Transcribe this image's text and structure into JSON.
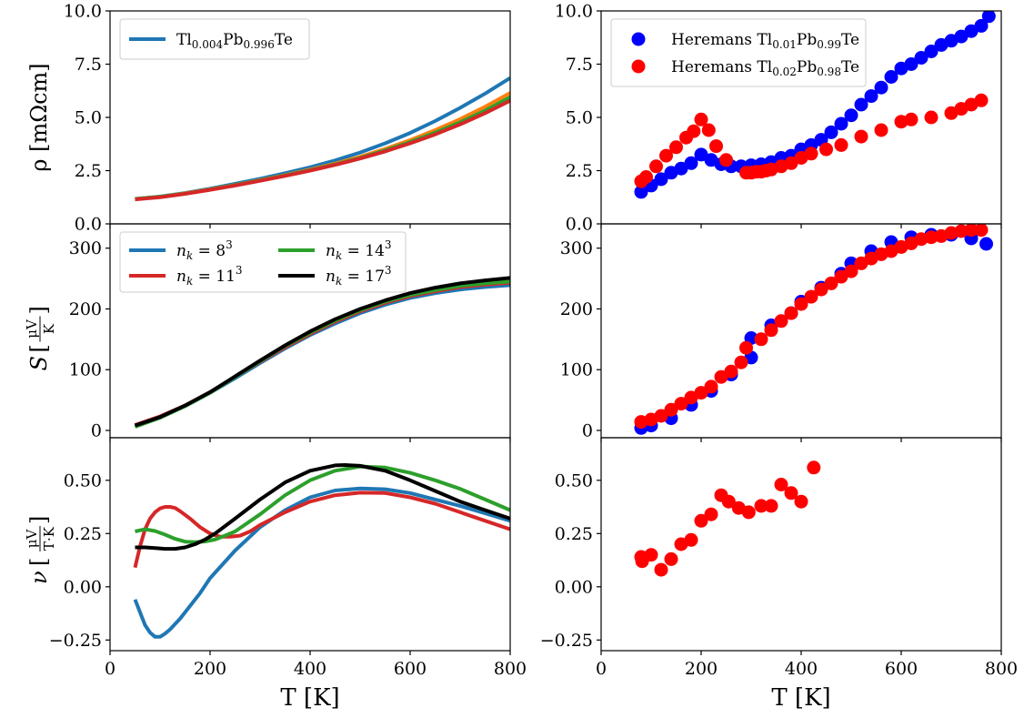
{
  "chart_data": [
    {
      "id": "rho_calc",
      "type": "line",
      "ylabel": "ρ [mΩcm]",
      "xlim": [
        0,
        800
      ],
      "ylim": [
        0,
        10
      ],
      "xticks": [
        0,
        200,
        400,
        600,
        800
      ],
      "yticks": [
        0.0,
        2.5,
        5.0,
        7.5,
        10.0
      ],
      "ytick_labels": [
        "0.0",
        "2.5",
        "5.0",
        "7.5",
        "10.0"
      ],
      "legend_position": "top-left",
      "legend": [
        {
          "name_main": "Tl",
          "sub1": "0.004",
          "mid": "Pb",
          "sub2": "0.996",
          "tail": "Te",
          "color": "#1f77b4"
        }
      ],
      "series": [
        {
          "color": "#1f77b4",
          "x": [
            50,
            100,
            150,
            200,
            250,
            300,
            350,
            400,
            450,
            500,
            550,
            600,
            650,
            700,
            750,
            800
          ],
          "y": [
            1.17,
            1.28,
            1.45,
            1.65,
            1.88,
            2.12,
            2.38,
            2.66,
            2.98,
            3.35,
            3.78,
            4.27,
            4.83,
            5.45,
            6.12,
            6.85
          ]
        },
        {
          "color": "#ff7f0e",
          "x": [
            50,
            100,
            150,
            200,
            250,
            300,
            350,
            400,
            450,
            500,
            550,
            600,
            650,
            700,
            750,
            800
          ],
          "y": [
            1.17,
            1.27,
            1.43,
            1.62,
            1.83,
            2.05,
            2.29,
            2.55,
            2.83,
            3.15,
            3.52,
            3.93,
            4.4,
            4.92,
            5.5,
            6.15
          ]
        },
        {
          "color": "#2ca02c",
          "x": [
            50,
            100,
            150,
            200,
            250,
            300,
            350,
            400,
            450,
            500,
            550,
            600,
            650,
            700,
            750,
            800
          ],
          "y": [
            1.17,
            1.27,
            1.42,
            1.61,
            1.82,
            2.04,
            2.27,
            2.52,
            2.79,
            3.1,
            3.45,
            3.84,
            4.28,
            4.77,
            5.32,
            5.95
          ]
        },
        {
          "color": "#d62728",
          "x": [
            50,
            100,
            150,
            200,
            250,
            300,
            350,
            400,
            450,
            500,
            550,
            600,
            650,
            700,
            750,
            800
          ],
          "y": [
            1.15,
            1.25,
            1.41,
            1.6,
            1.8,
            2.02,
            2.25,
            2.5,
            2.77,
            3.07,
            3.4,
            3.78,
            4.2,
            4.67,
            5.2,
            5.78
          ]
        }
      ]
    },
    {
      "id": "rho_exp",
      "type": "scatter",
      "xlim": [
        0,
        800
      ],
      "ylim": [
        0,
        10
      ],
      "xticks": [
        0,
        200,
        400,
        600,
        800
      ],
      "yticks": [
        0.0,
        2.5,
        5.0,
        7.5,
        10.0
      ],
      "ytick_labels": [
        "0.0",
        "2.5",
        "5.0",
        "7.5",
        "10.0"
      ],
      "legend_position": "top-left",
      "legend": [
        {
          "name_main": "Heremans Tl",
          "sub1": "0.01",
          "mid": "Pb",
          "sub2": "0.99",
          "tail": "Te",
          "color": "#0000ff"
        },
        {
          "name_main": "Heremans Tl",
          "sub1": "0.02",
          "mid": "Pb",
          "sub2": "0.98",
          "tail": "Te",
          "color": "#ff0000"
        }
      ],
      "series": [
        {
          "color": "#0000ff",
          "x": [
            80,
            100,
            120,
            140,
            160,
            180,
            200,
            220,
            240,
            260,
            280,
            300,
            320,
            340,
            360,
            380,
            400,
            420,
            440,
            460,
            480,
            500,
            520,
            540,
            560,
            580,
            600,
            620,
            640,
            660,
            680,
            700,
            720,
            740,
            760,
            775
          ],
          "y": [
            1.5,
            1.8,
            2.1,
            2.4,
            2.6,
            2.85,
            3.25,
            3.0,
            2.8,
            2.7,
            2.7,
            2.75,
            2.8,
            2.9,
            3.1,
            3.2,
            3.5,
            3.7,
            3.95,
            4.3,
            4.7,
            5.1,
            5.6,
            6.0,
            6.4,
            6.9,
            7.3,
            7.5,
            7.8,
            8.1,
            8.4,
            8.6,
            8.8,
            9.05,
            9.3,
            9.75
          ]
        },
        {
          "color": "#ff0000",
          "x": [
            80,
            90,
            110,
            130,
            150,
            170,
            185,
            200,
            215,
            230,
            250,
            290,
            300,
            310,
            320,
            330,
            340,
            360,
            380,
            400,
            420,
            450,
            480,
            520,
            560,
            600,
            620,
            660,
            700,
            720,
            740,
            760
          ],
          "y": [
            2.0,
            2.2,
            2.7,
            3.2,
            3.6,
            4.05,
            4.35,
            4.9,
            4.4,
            3.65,
            3.0,
            2.4,
            2.4,
            2.45,
            2.45,
            2.5,
            2.55,
            2.7,
            2.85,
            3.1,
            3.3,
            3.5,
            3.7,
            4.1,
            4.4,
            4.8,
            4.9,
            5.0,
            5.2,
            5.4,
            5.6,
            5.8
          ]
        }
      ]
    },
    {
      "id": "S_calc",
      "type": "line",
      "ylabel": "S",
      "ylabel_num": "μV",
      "ylabel_den": "K",
      "xlim": [
        0,
        800
      ],
      "ylim": [
        -12,
        340
      ],
      "xticks": [
        0,
        200,
        400,
        600,
        800
      ],
      "yticks": [
        0,
        100,
        200,
        300
      ],
      "ytick_labels": [
        "0",
        "100",
        "200",
        "300"
      ],
      "legend_position": "top-left",
      "legend": [
        {
          "name_main": "n",
          "sub1": "k",
          "mid": " = 8",
          "sup": "3",
          "color": "#1f77b4"
        },
        {
          "name_main": "n",
          "sub1": "k",
          "mid": " = 11",
          "sup": "3",
          "color": "#d62728"
        },
        {
          "name_main": "n",
          "sub1": "k",
          "mid": " = 14",
          "sup": "3",
          "color": "#2ca02c"
        },
        {
          "name_main": "n",
          "sub1": "k",
          "mid": " = 17",
          "sup": "3",
          "color": "#000000"
        }
      ],
      "series": [
        {
          "color": "#1f77b4",
          "x": [
            50,
            100,
            150,
            200,
            250,
            300,
            350,
            400,
            450,
            500,
            550,
            600,
            650,
            700,
            750,
            800
          ],
          "y": [
            8,
            22,
            40,
            62,
            86,
            111,
            135,
            157,
            176,
            193,
            207,
            218,
            226,
            232,
            236,
            239
          ]
        },
        {
          "color": "#d62728",
          "x": [
            50,
            100,
            150,
            200,
            250,
            300,
            350,
            400,
            450,
            500,
            550,
            600,
            650,
            700,
            750,
            800
          ],
          "y": [
            9,
            23,
            41,
            63,
            88,
            113,
            137,
            159,
            179,
            196,
            210,
            221,
            229,
            236,
            240,
            243
          ]
        },
        {
          "color": "#2ca02c",
          "x": [
            50,
            100,
            150,
            200,
            250,
            300,
            350,
            400,
            450,
            500,
            550,
            600,
            650,
            700,
            750,
            800
          ],
          "y": [
            6,
            21,
            40,
            62,
            88,
            114,
            139,
            161,
            181,
            198,
            212,
            223,
            231,
            238,
            242,
            245
          ]
        },
        {
          "color": "#000000",
          "x": [
            50,
            100,
            150,
            200,
            250,
            300,
            350,
            400,
            450,
            500,
            550,
            600,
            650,
            700,
            750,
            800
          ],
          "y": [
            8,
            22,
            41,
            63,
            89,
            115,
            140,
            163,
            183,
            200,
            214,
            226,
            235,
            242,
            247,
            251
          ]
        }
      ]
    },
    {
      "id": "S_exp",
      "type": "scatter",
      "xlim": [
        0,
        800
      ],
      "ylim": [
        -12,
        340
      ],
      "xticks": [
        0,
        200,
        400,
        600,
        800
      ],
      "yticks": [
        0,
        100,
        200,
        300
      ],
      "ytick_labels": [
        "0",
        "100",
        "200",
        "300"
      ],
      "series": [
        {
          "color": "#0000ff",
          "x": [
            80,
            100,
            140,
            180,
            220,
            260,
            300,
            300,
            340,
            380,
            400,
            440,
            480,
            500,
            540,
            580,
            620,
            660,
            700,
            740,
            770
          ],
          "y": [
            4,
            8,
            20,
            42,
            65,
            92,
            120,
            152,
            173,
            193,
            212,
            235,
            258,
            275,
            295,
            310,
            318,
            322,
            322,
            316,
            307
          ]
        },
        {
          "color": "#ff0000",
          "x": [
            80,
            100,
            120,
            140,
            160,
            180,
            200,
            220,
            240,
            260,
            280,
            290,
            320,
            340,
            360,
            380,
            400,
            420,
            440,
            460,
            480,
            500,
            520,
            540,
            560,
            580,
            600,
            620,
            640,
            660,
            680,
            700,
            720,
            740,
            760
          ],
          "y": [
            14,
            18,
            24,
            34,
            44,
            54,
            62,
            72,
            88,
            97,
            112,
            136,
            150,
            165,
            180,
            193,
            208,
            220,
            232,
            242,
            253,
            262,
            275,
            283,
            290,
            295,
            302,
            308,
            315,
            318,
            320,
            325,
            328,
            330,
            330
          ]
        }
      ]
    },
    {
      "id": "nu_calc",
      "type": "line",
      "ylabel": "ν",
      "ylabel_num": "μV",
      "ylabel_den": "T·K",
      "xlabel": "T [K]",
      "xlim": [
        0,
        800
      ],
      "ylim": [
        -0.3,
        0.7
      ],
      "xticks": [
        0,
        200,
        400,
        600,
        800
      ],
      "xtick_labels": [
        "0",
        "200",
        "400",
        "600",
        "800"
      ],
      "yticks": [
        -0.25,
        0.0,
        0.25,
        0.5
      ],
      "ytick_labels": [
        "−0.25",
        "0.00",
        "0.25",
        "0.50"
      ],
      "series": [
        {
          "color": "#1f77b4",
          "x": [
            50,
            60,
            70,
            80,
            90,
            100,
            110,
            120,
            140,
            160,
            180,
            200,
            250,
            300,
            350,
            400,
            450,
            500,
            550,
            600,
            650,
            700,
            750,
            800
          ],
          "y": [
            -0.06,
            -0.12,
            -0.18,
            -0.215,
            -0.235,
            -0.235,
            -0.22,
            -0.2,
            -0.15,
            -0.09,
            -0.03,
            0.04,
            0.17,
            0.28,
            0.36,
            0.42,
            0.452,
            0.462,
            0.458,
            0.44,
            0.41,
            0.38,
            0.345,
            0.31
          ]
        },
        {
          "color": "#d62728",
          "x": [
            50,
            60,
            70,
            80,
            90,
            100,
            110,
            120,
            130,
            140,
            160,
            180,
            200,
            220,
            240,
            260,
            280,
            300,
            350,
            400,
            450,
            500,
            550,
            600,
            650,
            700,
            750,
            800
          ],
          "y": [
            0.09,
            0.19,
            0.27,
            0.32,
            0.35,
            0.368,
            0.375,
            0.375,
            0.37,
            0.355,
            0.32,
            0.28,
            0.25,
            0.235,
            0.235,
            0.24,
            0.26,
            0.29,
            0.35,
            0.4,
            0.43,
            0.442,
            0.44,
            0.42,
            0.39,
            0.35,
            0.31,
            0.27
          ]
        },
        {
          "color": "#2ca02c",
          "x": [
            50,
            70,
            90,
            110,
            130,
            150,
            170,
            190,
            210,
            230,
            250,
            300,
            350,
            400,
            450,
            500,
            550,
            600,
            650,
            700,
            750,
            800
          ],
          "y": [
            0.26,
            0.27,
            0.262,
            0.245,
            0.225,
            0.212,
            0.21,
            0.213,
            0.222,
            0.24,
            0.26,
            0.34,
            0.43,
            0.5,
            0.545,
            0.565,
            0.56,
            0.535,
            0.5,
            0.46,
            0.41,
            0.36
          ]
        },
        {
          "color": "#000000",
          "x": [
            50,
            70,
            90,
            110,
            130,
            150,
            170,
            190,
            210,
            230,
            250,
            300,
            350,
            400,
            450,
            470,
            500,
            550,
            600,
            650,
            700,
            750,
            800
          ],
          "y": [
            0.185,
            0.185,
            0.182,
            0.178,
            0.178,
            0.185,
            0.2,
            0.222,
            0.25,
            0.285,
            0.32,
            0.41,
            0.49,
            0.545,
            0.57,
            0.572,
            0.568,
            0.545,
            0.5,
            0.45,
            0.4,
            0.36,
            0.32
          ]
        }
      ]
    },
    {
      "id": "nu_exp",
      "type": "scatter",
      "xlabel": "T [K]",
      "xlim": [
        0,
        800
      ],
      "ylim": [
        -0.3,
        0.7
      ],
      "xticks": [
        0,
        200,
        400,
        600,
        800
      ],
      "xtick_labels": [
        "0",
        "200",
        "400",
        "600",
        "800"
      ],
      "yticks": [
        -0.25,
        0.0,
        0.25,
        0.5
      ],
      "ytick_labels": [
        "−0.25",
        "0.00",
        "0.25",
        "0.50"
      ],
      "series": [
        {
          "color": "#ff0000",
          "x": [
            80,
            82,
            100,
            120,
            140,
            160,
            180,
            200,
            220,
            240,
            255,
            275,
            295,
            320,
            340,
            360,
            380,
            400,
            425
          ],
          "y": [
            0.14,
            0.12,
            0.15,
            0.08,
            0.13,
            0.2,
            0.22,
            0.31,
            0.34,
            0.43,
            0.4,
            0.37,
            0.35,
            0.38,
            0.38,
            0.48,
            0.44,
            0.4,
            0.56
          ]
        }
      ]
    }
  ]
}
